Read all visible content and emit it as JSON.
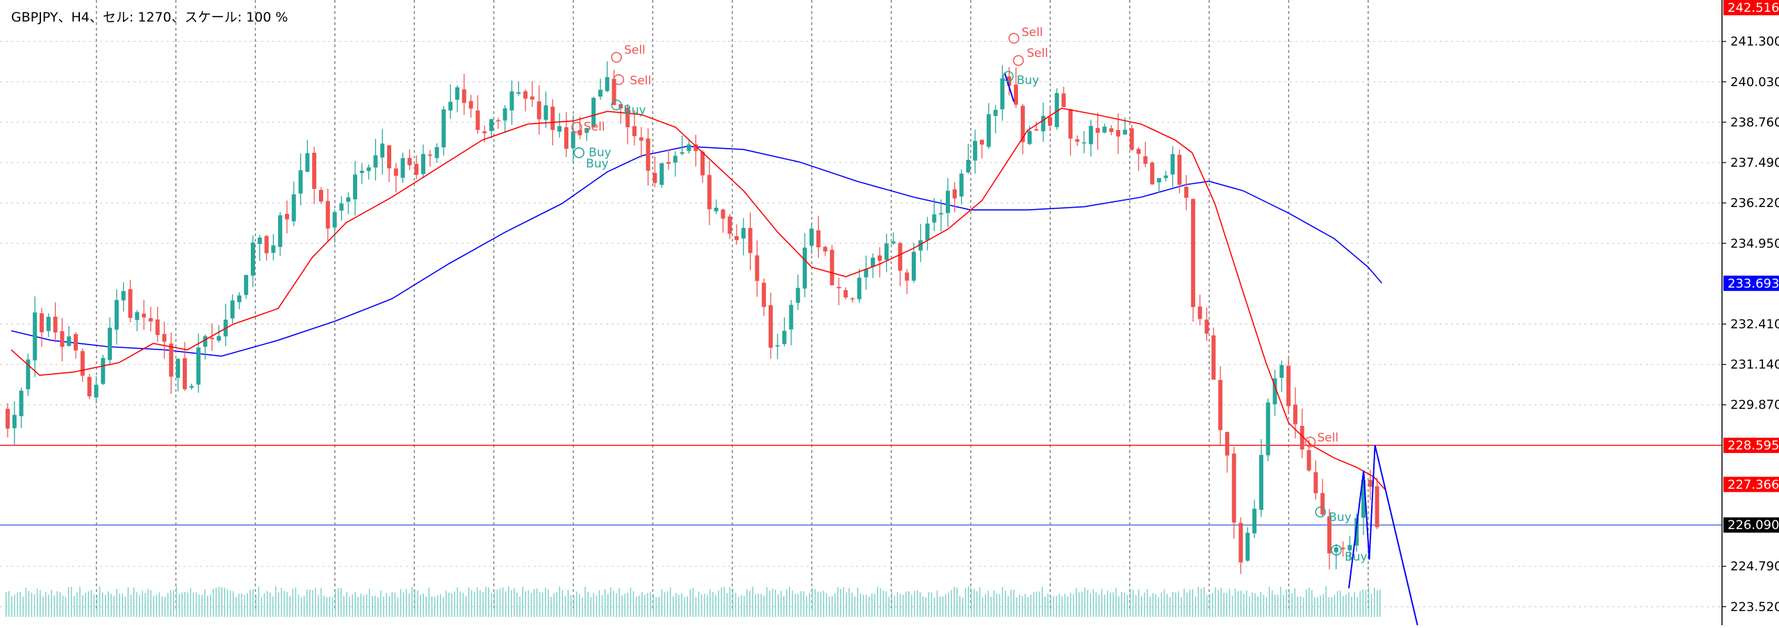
{
  "header": {
    "title": "GBPJPY、H4、セル: 1270、スケール: 100 %"
  },
  "colors": {
    "bull": "#26a69a",
    "bear": "#ef5350",
    "ma_fast": "#ff0000",
    "ma_slow": "#0000ff",
    "grid": "#c8c8c8",
    "volume": "#7fd0c8",
    "price_line_red": "#ff0000",
    "price_line_blue": "#0000ff",
    "trend_blue": "#0000ff"
  },
  "chart_data": {
    "type": "candlestick",
    "symbol": "GBPJPY",
    "timeframe": "H4",
    "grid": true,
    "y_ticks": [
      "241.300",
      "240.030",
      "238.760",
      "237.490",
      "236.220",
      "234.950",
      "232.410",
      "231.140",
      "229.870",
      "224.790",
      "223.520"
    ],
    "ylim": [
      222.85,
      242.516
    ],
    "x_range": [
      0,
      1200
    ],
    "price_labels": [
      {
        "text": "242.516",
        "value": 242.516,
        "bg": "#ff0000"
      },
      {
        "text": "233.693",
        "value": 233.693,
        "bg": "#0000ff"
      },
      {
        "text": "228.595",
        "value": 228.595,
        "bg": "#ff0000"
      },
      {
        "text": "227.366",
        "value": 227.366,
        "bg": "#ff0000"
      },
      {
        "text": "226.090",
        "value": 226.09,
        "bg": "#000000"
      }
    ],
    "hlines": [
      {
        "value": 228.595,
        "color": "#ff0000"
      },
      {
        "value": 226.09,
        "color": "#4169e1"
      }
    ],
    "vgrid": [
      80,
      150,
      220,
      290,
      360,
      430,
      500,
      570,
      640,
      710,
      780,
      850,
      920,
      990,
      1060,
      1130,
      1200
    ],
    "anchors": [
      {
        "x": 0,
        "p": 229.8
      },
      {
        "x": 15,
        "p": 229.2
      },
      {
        "x": 30,
        "p": 233.0
      },
      {
        "x": 45,
        "p": 232.0
      },
      {
        "x": 60,
        "p": 231.8
      },
      {
        "x": 80,
        "p": 230.2
      },
      {
        "x": 100,
        "p": 233.2
      },
      {
        "x": 120,
        "p": 232.8
      },
      {
        "x": 150,
        "p": 231.2
      },
      {
        "x": 165,
        "p": 230.4
      },
      {
        "x": 180,
        "p": 232.0
      },
      {
        "x": 200,
        "p": 232.8
      },
      {
        "x": 220,
        "p": 234.5
      },
      {
        "x": 250,
        "p": 235.6
      },
      {
        "x": 270,
        "p": 237.4
      },
      {
        "x": 290,
        "p": 235.4
      },
      {
        "x": 310,
        "p": 237.0
      },
      {
        "x": 330,
        "p": 237.8
      },
      {
        "x": 360,
        "p": 237.3
      },
      {
        "x": 380,
        "p": 238.0
      },
      {
        "x": 400,
        "p": 239.5
      },
      {
        "x": 430,
        "p": 238.4
      },
      {
        "x": 460,
        "p": 239.8
      },
      {
        "x": 490,
        "p": 238.6
      },
      {
        "x": 510,
        "p": 238.0
      },
      {
        "x": 530,
        "p": 239.9
      },
      {
        "x": 550,
        "p": 239.2
      },
      {
        "x": 570,
        "p": 237.3
      },
      {
        "x": 590,
        "p": 237.2
      },
      {
        "x": 610,
        "p": 238.0
      },
      {
        "x": 630,
        "p": 235.8
      },
      {
        "x": 660,
        "p": 235.0
      },
      {
        "x": 670,
        "p": 233.0
      },
      {
        "x": 680,
        "p": 231.6
      },
      {
        "x": 700,
        "p": 233.5
      },
      {
        "x": 715,
        "p": 235.9
      },
      {
        "x": 730,
        "p": 234.0
      },
      {
        "x": 745,
        "p": 233.4
      },
      {
        "x": 760,
        "p": 233.6
      },
      {
        "x": 780,
        "p": 235.1
      },
      {
        "x": 800,
        "p": 234.0
      },
      {
        "x": 815,
        "p": 236.0
      },
      {
        "x": 830,
        "p": 236.3
      },
      {
        "x": 850,
        "p": 237.3
      },
      {
        "x": 870,
        "p": 238.8
      },
      {
        "x": 885,
        "p": 240.3
      },
      {
        "x": 900,
        "p": 238.0
      },
      {
        "x": 915,
        "p": 238.5
      },
      {
        "x": 930,
        "p": 239.3
      },
      {
        "x": 950,
        "p": 238.0
      },
      {
        "x": 970,
        "p": 239.0
      },
      {
        "x": 990,
        "p": 238.3
      },
      {
        "x": 1010,
        "p": 237.0
      },
      {
        "x": 1030,
        "p": 237.5
      },
      {
        "x": 1045,
        "p": 236.5
      },
      {
        "x": 1050,
        "p": 233.0
      },
      {
        "x": 1060,
        "p": 232.0
      },
      {
        "x": 1070,
        "p": 230.5
      },
      {
        "x": 1080,
        "p": 228.0
      },
      {
        "x": 1090,
        "p": 225.2
      },
      {
        "x": 1100,
        "p": 226.0
      },
      {
        "x": 1110,
        "p": 228.5
      },
      {
        "x": 1125,
        "p": 231.6
      },
      {
        "x": 1135,
        "p": 230.0
      },
      {
        "x": 1145,
        "p": 228.7
      },
      {
        "x": 1160,
        "p": 227.0
      },
      {
        "x": 1170,
        "p": 225.5
      },
      {
        "x": 1180,
        "p": 225.0
      },
      {
        "x": 1190,
        "p": 226.0
      },
      {
        "x": 1200,
        "p": 227.6
      },
      {
        "x": 1212,
        "p": 226.2
      }
    ],
    "ma_fast": [
      {
        "x": 5,
        "p": 231.6
      },
      {
        "x": 30,
        "p": 230.8
      },
      {
        "x": 60,
        "p": 230.9
      },
      {
        "x": 100,
        "p": 231.2
      },
      {
        "x": 130,
        "p": 231.8
      },
      {
        "x": 160,
        "p": 231.6
      },
      {
        "x": 200,
        "p": 232.4
      },
      {
        "x": 240,
        "p": 232.9
      },
      {
        "x": 270,
        "p": 234.5
      },
      {
        "x": 300,
        "p": 235.6
      },
      {
        "x": 340,
        "p": 236.4
      },
      {
        "x": 380,
        "p": 237.3
      },
      {
        "x": 420,
        "p": 238.2
      },
      {
        "x": 460,
        "p": 238.7
      },
      {
        "x": 500,
        "p": 238.8
      },
      {
        "x": 530,
        "p": 239.1
      },
      {
        "x": 560,
        "p": 239.0
      },
      {
        "x": 590,
        "p": 238.6
      },
      {
        "x": 620,
        "p": 237.6
      },
      {
        "x": 650,
        "p": 236.6
      },
      {
        "x": 680,
        "p": 235.3
      },
      {
        "x": 710,
        "p": 234.2
      },
      {
        "x": 740,
        "p": 233.9
      },
      {
        "x": 770,
        "p": 234.3
      },
      {
        "x": 800,
        "p": 234.8
      },
      {
        "x": 830,
        "p": 235.4
      },
      {
        "x": 860,
        "p": 236.3
      },
      {
        "x": 880,
        "p": 237.4
      },
      {
        "x": 900,
        "p": 238.5
      },
      {
        "x": 930,
        "p": 239.2
      },
      {
        "x": 960,
        "p": 239.0
      },
      {
        "x": 1000,
        "p": 238.7
      },
      {
        "x": 1030,
        "p": 238.2
      },
      {
        "x": 1045,
        "p": 237.8
      },
      {
        "x": 1065,
        "p": 236.2
      },
      {
        "x": 1090,
        "p": 233.4
      },
      {
        "x": 1110,
        "p": 231.2
      },
      {
        "x": 1130,
        "p": 229.3
      },
      {
        "x": 1150,
        "p": 228.6
      },
      {
        "x": 1170,
        "p": 228.2
      },
      {
        "x": 1190,
        "p": 227.9
      },
      {
        "x": 1205,
        "p": 227.6
      },
      {
        "x": 1215,
        "p": 227.2
      }
    ],
    "ma_slow": [
      {
        "x": 5,
        "p": 232.2
      },
      {
        "x": 40,
        "p": 231.9
      },
      {
        "x": 90,
        "p": 231.7
      },
      {
        "x": 140,
        "p": 231.6
      },
      {
        "x": 190,
        "p": 231.4
      },
      {
        "x": 240,
        "p": 231.9
      },
      {
        "x": 290,
        "p": 232.5
      },
      {
        "x": 340,
        "p": 233.2
      },
      {
        "x": 390,
        "p": 234.3
      },
      {
        "x": 440,
        "p": 235.3
      },
      {
        "x": 490,
        "p": 236.2
      },
      {
        "x": 530,
        "p": 237.2
      },
      {
        "x": 560,
        "p": 237.7
      },
      {
        "x": 600,
        "p": 238.0
      },
      {
        "x": 650,
        "p": 237.9
      },
      {
        "x": 700,
        "p": 237.5
      },
      {
        "x": 750,
        "p": 236.9
      },
      {
        "x": 800,
        "p": 236.4
      },
      {
        "x": 850,
        "p": 236.0
      },
      {
        "x": 900,
        "p": 236.0
      },
      {
        "x": 950,
        "p": 236.1
      },
      {
        "x": 1000,
        "p": 236.4
      },
      {
        "x": 1040,
        "p": 236.8
      },
      {
        "x": 1060,
        "p": 236.9
      },
      {
        "x": 1090,
        "p": 236.6
      },
      {
        "x": 1130,
        "p": 235.9
      },
      {
        "x": 1170,
        "p": 235.1
      },
      {
        "x": 1200,
        "p": 234.2
      },
      {
        "x": 1212,
        "p": 233.7
      }
    ],
    "trend_lines": [
      {
        "x1": 880,
        "p1": 240.3,
        "x2": 888,
        "p2": 239.4
      },
      {
        "x1": 1183,
        "p1": 224.1,
        "x2": 1196,
        "p2": 227.8
      },
      {
        "x1": 1196,
        "p1": 227.8,
        "x2": 1201,
        "p2": 225.0
      },
      {
        "x1": 1201,
        "p1": 225.0,
        "x2": 1206,
        "p2": 228.6
      },
      {
        "x1": 1206,
        "p1": 228.6,
        "x2": 1245,
        "p2": 222.7
      }
    ],
    "signals": [
      {
        "type": "Sell",
        "x": 538,
        "p": 240.8,
        "label_dx": 5,
        "label_dy": -10
      },
      {
        "type": "Sell",
        "x": 540,
        "p": 240.1,
        "label_dx": 10,
        "label_dy": 2
      },
      {
        "type": "Buy",
        "x": 538,
        "p": 239.3,
        "label_dx": 4,
        "label_dy": 8
      },
      {
        "type": "Sell",
        "x": 503,
        "p": 238.6,
        "label_dx": 4,
        "label_dy": 0
      },
      {
        "type": "Buy",
        "x": 505,
        "p": 237.8,
        "label_dx": 8,
        "label_dy": 0
      },
      {
        "type": "Buy",
        "x": 505,
        "p": 237.8,
        "label_dx": 4,
        "label_dy": 16
      },
      {
        "type": "Sell",
        "x": 888,
        "p": 241.4,
        "label_dx": 5,
        "label_dy": -8
      },
      {
        "type": "Sell",
        "x": 892,
        "p": 240.7,
        "label_dx": 6,
        "label_dy": -10
      },
      {
        "type": "Buy",
        "x": 883,
        "p": 240.2,
        "label_dx": 6,
        "label_dy": 6
      },
      {
        "type": "Sell",
        "x": 1149,
        "p": 228.7,
        "label_dx": 4,
        "label_dy": -6
      },
      {
        "type": "Buy",
        "x": 1158,
        "p": 226.5,
        "label_dx": 6,
        "label_dy": 8
      },
      {
        "type": "Buy",
        "x": 1172,
        "p": 225.3,
        "label_dx": 6,
        "label_dy": 10
      }
    ]
  }
}
